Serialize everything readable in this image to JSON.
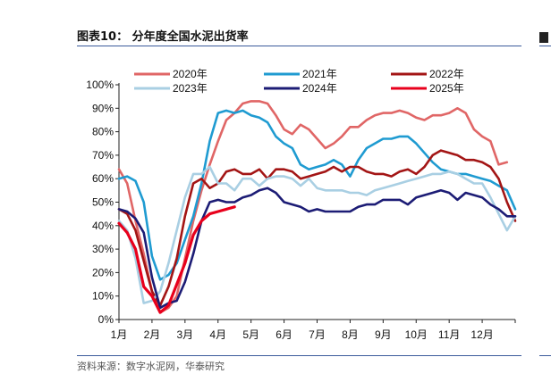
{
  "figure_title": "图表10：  分年度全国水泥出货率",
  "source_note": "资料来源：数字水泥网，华泰研究",
  "chart_data": {
    "type": "line",
    "title": "分年度全国水泥出货率",
    "xlabel": "",
    "ylabel": "",
    "ylim": [
      0,
      100
    ],
    "y_ticks": [
      "0%",
      "10%",
      "20%",
      "30%",
      "40%",
      "50%",
      "60%",
      "70%",
      "80%",
      "90%",
      "100%"
    ],
    "x_ticks": [
      "1月",
      "2月",
      "3月",
      "4月",
      "5月",
      "6月",
      "7月",
      "8月",
      "9月",
      "10月",
      "11月",
      "12月"
    ],
    "grid": false,
    "legend_position": "top",
    "series": [
      {
        "name": "2020年",
        "color": "#e06666",
        "x": [
          1.0,
          1.25,
          1.5,
          1.75,
          2.0,
          2.25,
          2.5,
          2.75,
          3.0,
          3.25,
          3.5,
          3.75,
          4.0,
          4.25,
          4.5,
          4.75,
          5.0,
          5.25,
          5.5,
          5.75,
          6.0,
          6.25,
          6.5,
          6.75,
          7.0,
          7.25,
          7.5,
          7.75,
          8.0,
          8.25,
          8.5,
          8.75,
          9.0,
          9.25,
          9.5,
          9.75,
          10.0,
          10.25,
          10.5,
          10.75,
          11.0,
          11.25,
          11.5,
          11.75,
          12.0,
          12.25,
          12.5,
          12.75
        ],
        "values": [
          64,
          58,
          42,
          28,
          12,
          3,
          5,
          10,
          26,
          42,
          55,
          66,
          76,
          85,
          88,
          92,
          93,
          93,
          92,
          87,
          81,
          79,
          83,
          81,
          77,
          73,
          75,
          78,
          82,
          82,
          85,
          87,
          88,
          88,
          89,
          88,
          86,
          85,
          87,
          87,
          88,
          90,
          88,
          81,
          78,
          76,
          66,
          67
        ]
      },
      {
        "name": "2021年",
        "color": "#1f9bd1",
        "x": [
          1.0,
          1.25,
          1.5,
          1.75,
          2.0,
          2.25,
          2.5,
          2.75,
          3.0,
          3.25,
          3.5,
          3.75,
          4.0,
          4.25,
          4.5,
          4.75,
          5.0,
          5.25,
          5.5,
          5.75,
          6.0,
          6.25,
          6.5,
          6.75,
          7.0,
          7.25,
          7.5,
          7.75,
          8.0,
          8.25,
          8.5,
          8.75,
          9.0,
          9.25,
          9.5,
          9.75,
          10.0,
          10.25,
          10.5,
          10.75,
          11.0,
          11.25,
          11.5,
          11.75,
          12.0,
          12.25,
          12.5,
          12.75,
          13.0
        ],
        "values": [
          60,
          61,
          59,
          50,
          27,
          17,
          19,
          24,
          34,
          44,
          58,
          76,
          88,
          89,
          88,
          89,
          87,
          86,
          84,
          78,
          75,
          73,
          66,
          64,
          65,
          66,
          68,
          66,
          61,
          68,
          73,
          75,
          77,
          77,
          78,
          78,
          75,
          71,
          67,
          64,
          63,
          62,
          62,
          61,
          60,
          59,
          57,
          55,
          47
        ]
      },
      {
        "name": "2022年",
        "color": "#a31515",
        "x": [
          1.0,
          1.25,
          1.5,
          1.75,
          2.0,
          2.25,
          2.5,
          2.75,
          3.0,
          3.25,
          3.5,
          3.75,
          4.0,
          4.25,
          4.5,
          4.75,
          5.0,
          5.25,
          5.5,
          5.75,
          6.0,
          6.25,
          6.5,
          6.75,
          7.0,
          7.25,
          7.5,
          7.75,
          8.0,
          8.25,
          8.5,
          8.75,
          9.0,
          9.25,
          9.5,
          9.75,
          10.0,
          10.25,
          10.5,
          10.75,
          11.0,
          11.25,
          11.5,
          11.75,
          12.0,
          12.25,
          12.5,
          12.75,
          13.0
        ],
        "values": [
          47,
          45,
          38,
          25,
          12,
          6,
          14,
          26,
          44,
          58,
          60,
          56,
          58,
          63,
          64,
          62,
          62,
          64,
          60,
          64,
          64,
          63,
          60,
          61,
          62,
          63,
          65,
          63,
          65,
          65,
          63,
          62,
          62,
          61,
          63,
          64,
          62,
          65,
          70,
          72,
          71,
          70,
          68,
          68,
          67,
          65,
          60,
          50,
          42
        ]
      },
      {
        "name": "2023年",
        "color": "#a9cfe3",
        "x": [
          1.0,
          1.25,
          1.5,
          1.75,
          2.0,
          2.25,
          2.5,
          2.75,
          3.0,
          3.25,
          3.5,
          3.75,
          4.0,
          4.25,
          4.5,
          4.75,
          5.0,
          5.25,
          5.5,
          5.75,
          6.0,
          6.25,
          6.5,
          6.75,
          7.0,
          7.25,
          7.5,
          7.75,
          8.0,
          8.25,
          8.5,
          8.75,
          9.0,
          9.25,
          9.5,
          9.75,
          10.0,
          10.25,
          10.5,
          10.75,
          11.0,
          11.25,
          11.5,
          11.75,
          12.0,
          12.25,
          12.5,
          12.75,
          13.0
        ],
        "values": [
          42,
          38,
          26,
          7,
          8,
          12,
          24,
          38,
          52,
          62,
          62,
          65,
          58,
          58,
          55,
          60,
          60,
          57,
          60,
          61,
          61,
          60,
          57,
          60,
          56,
          55,
          55,
          55,
          54,
          54,
          53,
          55,
          56,
          57,
          58,
          59,
          60,
          61,
          62,
          62,
          63,
          62,
          60,
          58,
          58,
          52,
          45,
          38,
          44
        ]
      },
      {
        "name": "2024年",
        "color": "#1c1c75",
        "x": [
          1.0,
          1.25,
          1.5,
          1.75,
          2.0,
          2.25,
          2.5,
          2.75,
          3.0,
          3.25,
          3.5,
          3.75,
          4.0,
          4.25,
          4.5,
          4.75,
          5.0,
          5.25,
          5.5,
          5.75,
          6.0,
          6.25,
          6.5,
          6.75,
          7.0,
          7.25,
          7.5,
          7.75,
          8.0,
          8.25,
          8.5,
          8.75,
          9.0,
          9.25,
          9.5,
          9.75,
          10.0,
          10.25,
          10.5,
          10.75,
          11.0,
          11.25,
          11.5,
          11.75,
          12.0,
          12.25,
          12.5,
          12.75,
          13.0
        ],
        "values": [
          47,
          46,
          43,
          37,
          18,
          5,
          7,
          8,
          16,
          28,
          42,
          50,
          51,
          50,
          50,
          52,
          53,
          55,
          56,
          54,
          50,
          49,
          48,
          46,
          47,
          46,
          46,
          46,
          46,
          48,
          49,
          49,
          51,
          51,
          51,
          49,
          52,
          53,
          54,
          55,
          54,
          51,
          54,
          53,
          52,
          49,
          47,
          44,
          44
        ]
      },
      {
        "name": "2025年",
        "color": "#e8001c",
        "x": [
          1.0,
          1.25,
          1.5,
          1.75,
          2.0,
          2.25,
          2.5,
          2.75,
          3.0,
          3.25,
          3.5,
          3.75,
          4.0,
          4.25,
          4.5
        ],
        "values": [
          41,
          37,
          30,
          14,
          10,
          3,
          6,
          15,
          24,
          36,
          42,
          45,
          46,
          47,
          48
        ]
      }
    ]
  }
}
